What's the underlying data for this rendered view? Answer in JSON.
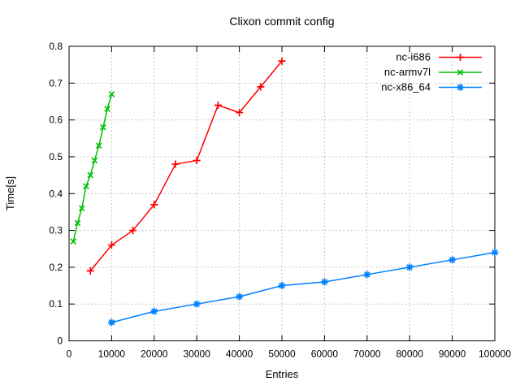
{
  "chart_data": {
    "type": "line",
    "title": "Clixon commit config",
    "xlabel": "Entries",
    "ylabel": "Time[s]",
    "xlim": [
      0,
      100000
    ],
    "ylim": [
      0,
      0.8
    ],
    "xticks": [
      0,
      10000,
      20000,
      30000,
      40000,
      50000,
      60000,
      70000,
      80000,
      90000,
      100000
    ],
    "yticks": [
      0,
      0.1,
      0.2,
      0.3,
      0.4,
      0.5,
      0.6,
      0.7,
      0.8
    ],
    "grid": true,
    "grid_style": "dotted-gray",
    "legend_position": "top-right-inside",
    "frame_color": "#000000",
    "grid_color": "#b4b4b4",
    "background_color": "#ffffff",
    "series": [
      {
        "name": "nc-i686",
        "color": "#ff0000",
        "marker": "plus",
        "points": [
          [
            5000,
            0.19
          ],
          [
            10000,
            0.26
          ],
          [
            15000,
            0.3
          ],
          [
            20000,
            0.37
          ],
          [
            25000,
            0.48
          ],
          [
            30000,
            0.49
          ],
          [
            35000,
            0.64
          ],
          [
            40000,
            0.62
          ],
          [
            45000,
            0.69
          ],
          [
            50000,
            0.76
          ]
        ]
      },
      {
        "name": "nc-armv7l",
        "color": "#00c000",
        "marker": "cross",
        "points": [
          [
            1000,
            0.27
          ],
          [
            2000,
            0.32
          ],
          [
            3000,
            0.36
          ],
          [
            4000,
            0.42
          ],
          [
            5000,
            0.45
          ],
          [
            6000,
            0.49
          ],
          [
            7000,
            0.53
          ],
          [
            8000,
            0.58
          ],
          [
            9000,
            0.63
          ],
          [
            10000,
            0.67
          ]
        ]
      },
      {
        "name": "nc-x86_64",
        "color": "#0080ff",
        "marker": "star",
        "points": [
          [
            10000,
            0.05
          ],
          [
            20000,
            0.08
          ],
          [
            30000,
            0.1
          ],
          [
            40000,
            0.12
          ],
          [
            50000,
            0.15
          ],
          [
            60000,
            0.16
          ],
          [
            70000,
            0.18
          ],
          [
            80000,
            0.2
          ],
          [
            90000,
            0.22
          ],
          [
            100000,
            0.24
          ]
        ]
      }
    ]
  }
}
